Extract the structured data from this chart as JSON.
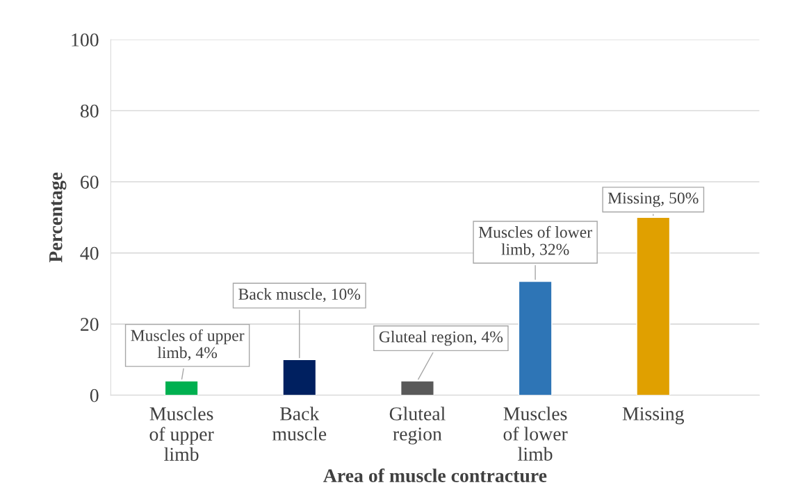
{
  "chart_data": {
    "type": "bar",
    "xlabel": "Area of muscle contracture",
    "ylabel": "Percentage",
    "categories": [
      "Muscles of upper limb",
      "Back muscle",
      "Gluteal region",
      "Muscles of lower limb",
      "Missing"
    ],
    "values": [
      4,
      10,
      4,
      32,
      50
    ],
    "colors": [
      "#00b050",
      "#002060",
      "#595959",
      "#2e75b6",
      "#e0a000"
    ],
    "value_labels": [
      "Muscles of upper limb, 4%",
      "Back muscle, 10%",
      "Gluteal region, 4%",
      "Muscles of lower limb, 32%",
      "Missing, 50%"
    ],
    "ylim": [
      0,
      100
    ],
    "yticks": [
      0,
      20,
      40,
      60,
      80,
      100
    ],
    "grid": "y",
    "legend": false
  }
}
